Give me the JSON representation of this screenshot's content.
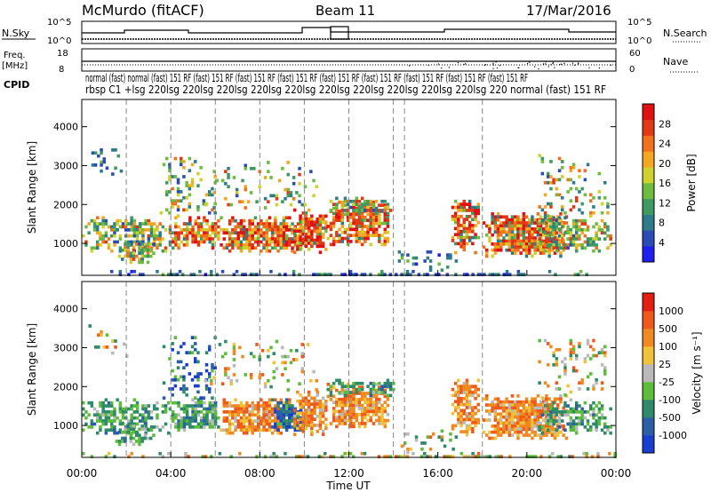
{
  "header": {
    "station": "McMurdo (fitACF)",
    "beam": "Beam 11",
    "date": "17/Mar/2016"
  },
  "strips": {
    "nsky_label": "N.Sky",
    "nsky_ticks": [
      "10^5",
      "10^0"
    ],
    "nsky_right_ticks": [
      "10^5",
      "10^0"
    ],
    "nsearch_label": "N.Search",
    "freq_label": "Freq.",
    "freq_unit": "[MHz]",
    "freq_ticks": [
      "18",
      "8"
    ],
    "nave_ticks": [
      "60",
      "0"
    ],
    "nave_label": "Nave",
    "cpid_label": "CPID",
    "cpid_line1": "normal (fast) normal (fast) 151 RF (fast) 151 RF (fast) 151 RF (fast) 151 RF (fast) 151 RF (fast) 151 RF (fast) 151 RF (fast) 151 RF (fast) 151 RF",
    "cpid_line2": "rbsp C1 +lsg 220lsg 220lsg 220lsg 220lsg 220lsg 220lsg 220lsg 220lsg 220lsg 220lsg 220 normal (fast) 151 RF"
  },
  "chart_data": [
    {
      "type": "heatmap",
      "name": "power",
      "ylabel": "Slant Range [km]",
      "yticks": [
        1000,
        2000,
        3000,
        4000
      ],
      "ylim": [
        180,
        4700
      ],
      "xlim": [
        0,
        24
      ],
      "colorbar": {
        "label": "Power [dB]",
        "ticks": [
          "4",
          "8",
          "12",
          "16",
          "20",
          "24",
          "28"
        ],
        "colors": [
          "#1e1ef0",
          "#2a4cb4",
          "#2e7b8c",
          "#3d9b62",
          "#6dbb3f",
          "#cfd12c",
          "#f5a623",
          "#f2711c",
          "#e03a14",
          "#e01010"
        ]
      }
    },
    {
      "type": "heatmap",
      "name": "velocity",
      "ylabel": "Slant Range [km]",
      "yticks": [
        1000,
        2000,
        3000,
        4000
      ],
      "ylim": [
        180,
        4700
      ],
      "xlim": [
        0,
        24
      ],
      "colorbar": {
        "label": "Velocity [m s⁻¹]",
        "ticks": [
          "1000",
          "500",
          "100",
          "25",
          "-25",
          "-100",
          "-500",
          "-1000"
        ],
        "colors": [
          "#1a3fcf",
          "#2d5fa8",
          "#2e8a6a",
          "#5bbd3a",
          "#b9b9b9",
          "#f0c23a",
          "#f08a22",
          "#ef5a1a",
          "#e31e12"
        ]
      }
    }
  ],
  "x_axis": {
    "ticks": [
      "00:00",
      "04:00",
      "08:00",
      "12:00",
      "16:00",
      "20:00",
      "00:00"
    ],
    "tick_hours": [
      0,
      4,
      8,
      12,
      16,
      20,
      24
    ],
    "label": "Time UT"
  },
  "scan_lines_hours": [
    2,
    4,
    6,
    8,
    10,
    12,
    14,
    14.5,
    18
  ]
}
